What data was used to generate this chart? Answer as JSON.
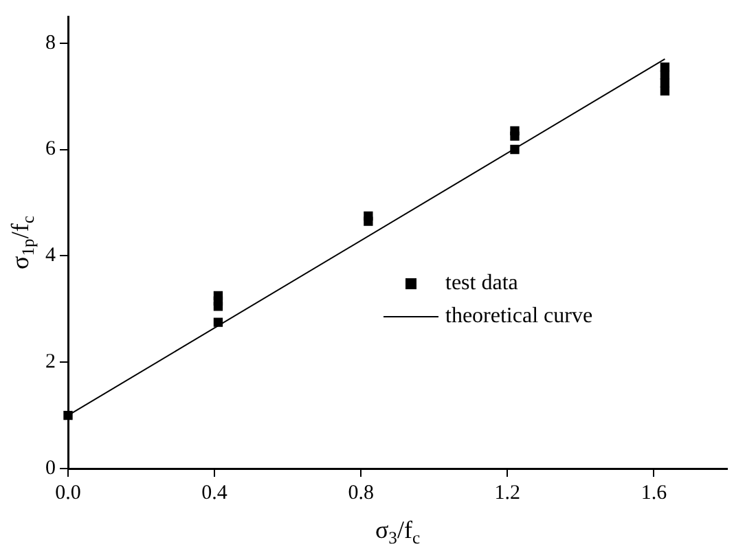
{
  "chart_data": {
    "type": "scatter",
    "xlabel": "σ$_{3}$/f$_{c}$",
    "ylabel": "σ$_{1p}$/f$_{c}$",
    "xlim": [
      0,
      1.8
    ],
    "xticks": [
      {
        "value": 0,
        "label": "0.0"
      },
      0.4,
      0.8,
      1.2,
      1.6
    ],
    "ylim": [
      0,
      8.5
    ],
    "yticks": [
      0,
      2,
      4,
      6,
      8
    ],
    "grid": false,
    "legend": "right",
    "marker": "square",
    "series": [
      {
        "name": "test data",
        "color": "#000000",
        "x": [
          0,
          0.41,
          0.41,
          0.41,
          0.41,
          0.82,
          0.82,
          1.22,
          1.22,
          1.22,
          1.63,
          1.63,
          1.63,
          1.63
        ],
        "values": [
          1.0,
          2.75,
          3.05,
          3.15,
          3.25,
          4.65,
          4.75,
          6.0,
          6.25,
          6.35,
          7.1,
          7.25,
          7.4,
          7.55
        ]
      },
      {
        "name": "theoretical curve",
        "type": "line",
        "color": "#000000",
        "marker": "none",
        "line_style": "solid",
        "x": [
          0,
          1.63
        ],
        "values": [
          1.0,
          7.7
        ]
      }
    ]
  }
}
